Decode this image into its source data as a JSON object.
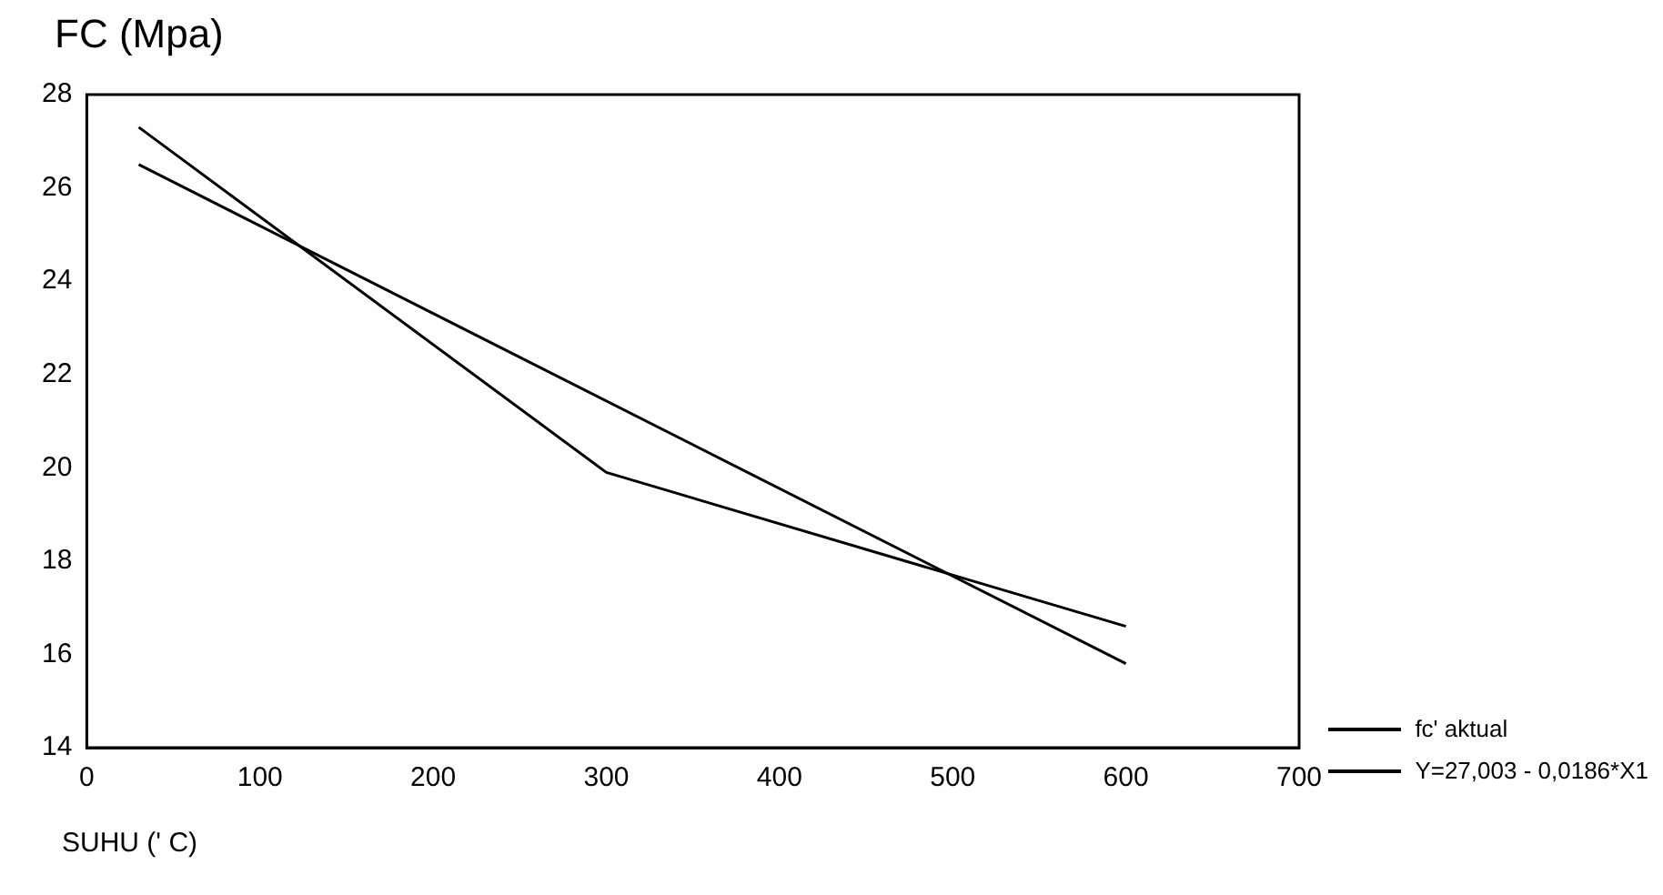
{
  "chart_data": {
    "type": "line",
    "ylabel": "FC (Mpa)",
    "xlabel": "SUHU (' C)",
    "xlim": [
      0,
      700
    ],
    "xticks": [
      0,
      100,
      200,
      300,
      400,
      500,
      600,
      700
    ],
    "ylim": [
      14,
      28
    ],
    "yticks": [
      14,
      16,
      18,
      20,
      22,
      24,
      26,
      28
    ],
    "series": [
      {
        "name": "fc' aktual",
        "color": "#000000",
        "x": [
          30,
          300,
          600
        ],
        "values": [
          27.3,
          19.9,
          16.6
        ]
      },
      {
        "name": "Y=27,003 - 0,0186*X1",
        "color": "#000000",
        "x": [
          30,
          600
        ],
        "values": [
          26.5,
          15.8
        ]
      }
    ],
    "grid": false,
    "legend": "bottom right",
    "marker": "none",
    "line_style": "solid"
  }
}
